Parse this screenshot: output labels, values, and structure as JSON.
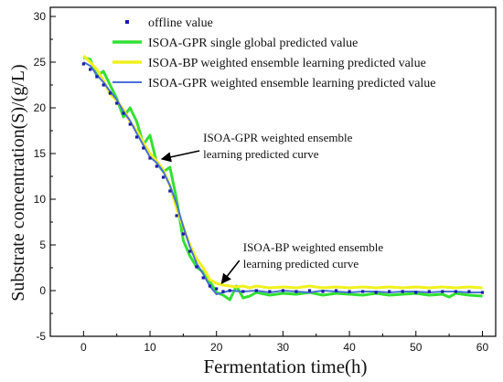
{
  "chart_data": {
    "type": "line",
    "xlabel": "Fermentation time(h)",
    "ylabel": "Substrate concentration(S)/(g/L)",
    "xlim": [
      -5,
      62
    ],
    "ylim": [
      -5,
      31
    ],
    "x_ticks": [
      0,
      10,
      20,
      30,
      40,
      50,
      60
    ],
    "y_ticks": [
      -5,
      0,
      5,
      10,
      15,
      20,
      25,
      30
    ],
    "legend_position": "top-right",
    "series": [
      {
        "name": "offline value",
        "style": "markers",
        "color": "#1a1aa8",
        "x": [
          0,
          1,
          2,
          3,
          4,
          5,
          6,
          7,
          8,
          9,
          10,
          11,
          12,
          13,
          14,
          15,
          16,
          17,
          18,
          19,
          20,
          21,
          22,
          24,
          26,
          28,
          30,
          32,
          34,
          36,
          38,
          40,
          42,
          44,
          46,
          48,
          50,
          52,
          54,
          56,
          58,
          60
        ],
        "y": [
          24.8,
          24.2,
          23.4,
          22.5,
          21.6,
          20.5,
          19.4,
          18.2,
          16.8,
          15.6,
          14.5,
          13.6,
          12.4,
          10.9,
          8.2,
          6.2,
          4.3,
          2.6,
          1.4,
          0.5,
          0.2,
          -0.1,
          0.0,
          -0.1,
          0.0,
          -0.1,
          0.0,
          -0.1,
          0.0,
          -0.1,
          0.0,
          -0.1,
          -0.1,
          -0.2,
          -0.1,
          -0.1,
          -0.2,
          -0.1,
          -0.1,
          -0.1,
          -0.1,
          -0.2
        ]
      },
      {
        "name": "ISOA-GPR single global predicted value",
        "style": "line",
        "color": "#33e033",
        "x": [
          0,
          1,
          2,
          3,
          4,
          5,
          6,
          7,
          8,
          9,
          10,
          11,
          12,
          13,
          14,
          15,
          16,
          17,
          18,
          19,
          20,
          21,
          22,
          23,
          24,
          25,
          26,
          28,
          30,
          32,
          34,
          36,
          38,
          40,
          42,
          44,
          46,
          48,
          50,
          52,
          54,
          55,
          56,
          58,
          60
        ],
        "y": [
          25.5,
          25.3,
          23.5,
          24.0,
          22.5,
          21.0,
          19.0,
          20.0,
          18.5,
          16.0,
          17.0,
          14.0,
          13.0,
          13.5,
          10.0,
          5.5,
          3.8,
          2.6,
          2.0,
          1.0,
          -0.2,
          -0.5,
          -1.0,
          0.5,
          -0.8,
          -0.6,
          -0.2,
          -0.5,
          -0.3,
          -0.4,
          -0.2,
          -0.5,
          -0.3,
          -0.4,
          -0.5,
          -0.3,
          -0.5,
          -0.4,
          -0.3,
          -0.5,
          -0.4,
          -0.7,
          -0.3,
          -0.5,
          -0.6
        ]
      },
      {
        "name": "ISOA-BP weighted ensemble learning predicted value",
        "style": "line",
        "color": "#f0f020",
        "x": [
          0,
          1,
          2,
          3,
          4,
          5,
          6,
          7,
          8,
          9,
          10,
          11,
          12,
          13,
          14,
          15,
          16,
          17,
          18,
          19,
          20,
          21,
          22,
          23,
          24,
          25,
          26,
          28,
          30,
          32,
          34,
          36,
          38,
          40,
          42,
          44,
          46,
          48,
          50,
          52,
          54,
          56,
          58,
          60
        ],
        "y": [
          25.7,
          25.0,
          24.2,
          23.0,
          21.5,
          20.8,
          19.8,
          18.5,
          17.5,
          16.2,
          15.0,
          14.2,
          13.2,
          11.5,
          9.0,
          7.0,
          5.0,
          3.5,
          2.5,
          1.2,
          0.8,
          0.6,
          0.5,
          0.4,
          0.5,
          0.3,
          0.5,
          0.3,
          0.4,
          0.3,
          0.5,
          0.3,
          0.4,
          0.3,
          0.4,
          0.3,
          0.4,
          0.3,
          0.4,
          0.3,
          0.4,
          0.3,
          0.4,
          0.3
        ]
      },
      {
        "name": "ISOA-GPR weighted ensemble learning predicted value",
        "style": "line",
        "color": "#4a6fd8",
        "x": [
          0,
          1,
          2,
          3,
          4,
          5,
          6,
          7,
          8,
          9,
          10,
          11,
          12,
          13,
          14,
          15,
          16,
          17,
          18,
          19,
          20,
          21,
          22,
          24,
          26,
          28,
          30,
          32,
          34,
          36,
          38,
          40,
          42,
          44,
          46,
          48,
          50,
          52,
          54,
          56,
          58,
          60
        ],
        "y": [
          25.0,
          24.6,
          23.6,
          22.8,
          21.8,
          20.9,
          19.6,
          18.6,
          17.2,
          15.9,
          14.6,
          14.0,
          13.0,
          11.5,
          9.5,
          7.0,
          4.8,
          3.0,
          1.8,
          0.5,
          -0.4,
          -0.2,
          0.0,
          -0.1,
          0.0,
          -0.2,
          0.0,
          -0.1,
          -0.2,
          0.0,
          -0.1,
          -0.2,
          -0.1,
          -0.1,
          -0.2,
          -0.1,
          -0.1,
          -0.2,
          -0.1,
          -0.1,
          -0.2,
          -0.2
        ]
      }
    ],
    "annotations": [
      {
        "lines": [
          "ISOA-GPR weighted ensemble",
          "learning predicted curve"
        ],
        "point": [
          11.5,
          14.2
        ],
        "text_at": [
          18,
          15.5
        ]
      },
      {
        "lines": [
          "ISOA-BP weighted ensemble",
          "learning predicted curve"
        ],
        "point": [
          20.5,
          0.6
        ],
        "text_at": [
          24,
          3.5
        ]
      }
    ]
  }
}
